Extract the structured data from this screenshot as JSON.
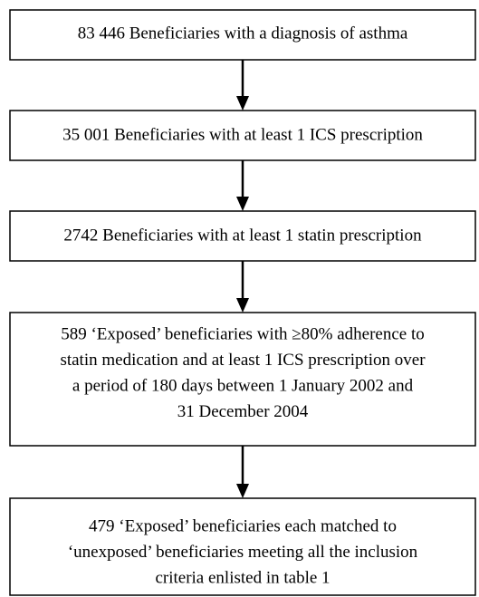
{
  "nodes": [
    {
      "lines": [
        "83 446 Beneficiaries with a diagnosis of asthma"
      ]
    },
    {
      "lines": [
        "35 001 Beneficiaries with at least 1 ICS prescription"
      ]
    },
    {
      "lines": [
        "2742 Beneficiaries with at least 1 statin prescription"
      ]
    },
    {
      "lines": [
        "589 ‘Exposed’ beneficiaries with ≥80% adherence to",
        "statin medication and at least 1 ICS prescription over",
        "a period of 180 days between 1 January 2002 and",
        "31 December 2004"
      ]
    },
    {
      "lines": [
        "479 ‘Exposed’ beneficiaries each matched to",
        "‘unexposed’ beneficiaries meeting all the inclusion",
        "criteria enlisted in table 1"
      ]
    }
  ]
}
